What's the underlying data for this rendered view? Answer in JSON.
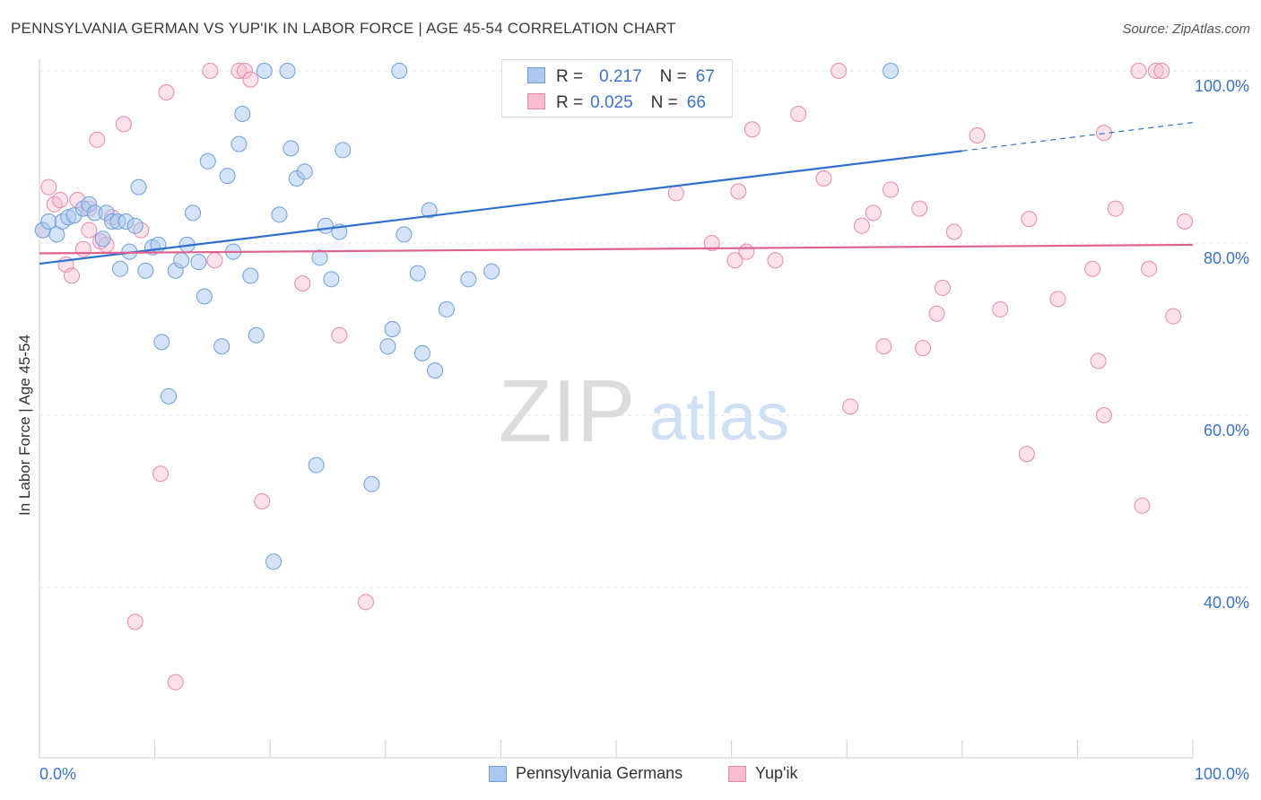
{
  "header": {
    "title": "PENNSYLVANIA GERMAN VS YUP'IK IN LABOR FORCE | AGE 45-54 CORRELATION CHART",
    "source": "Source: ZipAtlas.com"
  },
  "watermark": {
    "zip": "ZIP",
    "atlas": "atlas"
  },
  "legend_top": {
    "rows": [
      {
        "r_label": "R =",
        "r_value": "0.217",
        "n_label": "N =",
        "n_value": "67"
      },
      {
        "r_label": "R =",
        "r_value": "0.025",
        "n_label": "N =",
        "n_value": "66"
      }
    ]
  },
  "legend_bottom": {
    "items": [
      {
        "label": "Pennsylvania Germans"
      },
      {
        "label": "Yup'ik"
      }
    ]
  },
  "colors": {
    "blue_fill": "#aac8ef",
    "blue_stroke": "#6f9fd8",
    "blue_line": "#2f6fcf",
    "pink_fill": "#f6bcd0",
    "pink_stroke": "#e68aab",
    "pink_line": "#e0628f",
    "tick_label": "#3b72c8",
    "grid": "#e0e0e0"
  },
  "chart_data": {
    "type": "scatter",
    "title": "PENNSYLVANIA GERMAN VS YUP'IK IN LABOR FORCE | AGE 45-54 CORRELATION CHART",
    "xlabel": "",
    "ylabel": "In Labor Force | Age 45-54",
    "xlim": [
      0,
      100
    ],
    "ylim": [
      20,
      100.5
    ],
    "x_tick_labels": [
      "0.0%",
      "100.0%"
    ],
    "y_ticks": [
      40,
      60,
      80,
      100
    ],
    "y_tick_labels": [
      "40.0%",
      "60.0%",
      "80.0%",
      "100.0%"
    ],
    "grid": "horizontal dashed",
    "legend_position": "top-center",
    "series": [
      {
        "name": "Pennsylvania Germans",
        "R": 0.217,
        "N": 67,
        "trend": {
          "x0": 0,
          "y0": 77.6,
          "x1": 80,
          "y1": 90.7,
          "dashed_to_x": 100,
          "dashed_to_y": 94.0
        },
        "points": [
          [
            0.3,
            81.5
          ],
          [
            0.8,
            82.5
          ],
          [
            1.5,
            81.0
          ],
          [
            2.0,
            82.5
          ],
          [
            2.5,
            83.0
          ],
          [
            3.0,
            83.2
          ],
          [
            3.8,
            84.0
          ],
          [
            4.3,
            84.5
          ],
          [
            4.8,
            83.5
          ],
          [
            5.5,
            80.5
          ],
          [
            5.8,
            83.5
          ],
          [
            6.3,
            82.5
          ],
          [
            6.8,
            82.5
          ],
          [
            7.0,
            77.0
          ],
          [
            7.5,
            82.5
          ],
          [
            7.8,
            79.0
          ],
          [
            8.3,
            82.0
          ],
          [
            8.6,
            86.5
          ],
          [
            9.2,
            76.8
          ],
          [
            9.8,
            79.5
          ],
          [
            10.3,
            79.8
          ],
          [
            10.6,
            68.5
          ],
          [
            11.2,
            62.2
          ],
          [
            11.8,
            76.8
          ],
          [
            12.3,
            78.0
          ],
          [
            12.8,
            79.8
          ],
          [
            13.3,
            83.5
          ],
          [
            13.8,
            77.8
          ],
          [
            14.3,
            73.8
          ],
          [
            14.6,
            89.5
          ],
          [
            15.8,
            68.0
          ],
          [
            16.3,
            87.8
          ],
          [
            16.8,
            79.0
          ],
          [
            17.3,
            91.5
          ],
          [
            17.6,
            95.0
          ],
          [
            18.3,
            76.2
          ],
          [
            18.8,
            69.3
          ],
          [
            19.5,
            100.0
          ],
          [
            20.3,
            43.0
          ],
          [
            20.8,
            83.3
          ],
          [
            21.5,
            100.0
          ],
          [
            21.8,
            91.0
          ],
          [
            22.3,
            87.5
          ],
          [
            23.0,
            88.3
          ],
          [
            24.0,
            54.2
          ],
          [
            24.3,
            78.3
          ],
          [
            24.8,
            82.0
          ],
          [
            25.3,
            75.8
          ],
          [
            26.0,
            81.3
          ],
          [
            26.3,
            90.8
          ],
          [
            28.8,
            52.0
          ],
          [
            30.2,
            68.0
          ],
          [
            30.6,
            70.0
          ],
          [
            31.2,
            100.0
          ],
          [
            31.6,
            81.0
          ],
          [
            32.8,
            76.5
          ],
          [
            33.2,
            67.2
          ],
          [
            33.8,
            83.8
          ],
          [
            34.3,
            65.2
          ],
          [
            35.3,
            72.3
          ],
          [
            37.2,
            75.8
          ],
          [
            39.2,
            76.7
          ],
          [
            46.3,
            100.0
          ],
          [
            47.2,
            100.0
          ],
          [
            58.3,
            100.0
          ],
          [
            59.0,
            100.0
          ],
          [
            73.8,
            100.0
          ]
        ]
      },
      {
        "name": "Yup'ik",
        "R": 0.025,
        "N": 66,
        "trend": {
          "x0": 0,
          "y0": 78.8,
          "x1": 100,
          "y1": 79.8
        },
        "points": [
          [
            0.3,
            81.5
          ],
          [
            0.8,
            86.5
          ],
          [
            1.3,
            84.5
          ],
          [
            1.8,
            85.0
          ],
          [
            2.3,
            77.5
          ],
          [
            2.8,
            76.2
          ],
          [
            3.3,
            85.0
          ],
          [
            3.8,
            79.3
          ],
          [
            4.3,
            84.0
          ],
          [
            4.3,
            81.5
          ],
          [
            5.0,
            92.0
          ],
          [
            5.3,
            80.2
          ],
          [
            5.8,
            79.8
          ],
          [
            6.3,
            83.0
          ],
          [
            7.3,
            93.8
          ],
          [
            8.3,
            36.0
          ],
          [
            8.8,
            81.5
          ],
          [
            10.5,
            53.2
          ],
          [
            11.0,
            97.5
          ],
          [
            11.8,
            29.0
          ],
          [
            14.8,
            100.0
          ],
          [
            15.2,
            78.0
          ],
          [
            17.3,
            100.0
          ],
          [
            17.8,
            100.0
          ],
          [
            18.3,
            99.0
          ],
          [
            19.3,
            50.0
          ],
          [
            22.8,
            75.3
          ],
          [
            26.0,
            69.3
          ],
          [
            28.3,
            38.3
          ],
          [
            55.2,
            85.8
          ],
          [
            58.3,
            80.0
          ],
          [
            60.3,
            78.0
          ],
          [
            60.6,
            86.0
          ],
          [
            61.3,
            79.0
          ],
          [
            61.8,
            93.2
          ],
          [
            63.8,
            78.0
          ],
          [
            65.8,
            95.0
          ],
          [
            68.0,
            87.5
          ],
          [
            69.3,
            100.0
          ],
          [
            70.3,
            61.0
          ],
          [
            71.3,
            82.0
          ],
          [
            72.3,
            83.5
          ],
          [
            73.8,
            86.2
          ],
          [
            73.2,
            68.0
          ],
          [
            76.3,
            84.0
          ],
          [
            76.6,
            67.8
          ],
          [
            77.8,
            71.8
          ],
          [
            78.3,
            74.8
          ],
          [
            79.3,
            81.3
          ],
          [
            81.3,
            92.5
          ],
          [
            83.3,
            72.3
          ],
          [
            85.6,
            55.5
          ],
          [
            85.8,
            82.8
          ],
          [
            88.3,
            73.5
          ],
          [
            91.3,
            77.0
          ],
          [
            91.8,
            66.3
          ],
          [
            92.3,
            92.8
          ],
          [
            92.3,
            60.0
          ],
          [
            93.3,
            84.0
          ],
          [
            95.3,
            100.0
          ],
          [
            95.6,
            49.5
          ],
          [
            96.2,
            77.0
          ],
          [
            96.8,
            100.0
          ],
          [
            97.3,
            100.0
          ],
          [
            98.3,
            71.5
          ],
          [
            99.3,
            82.5
          ]
        ]
      }
    ]
  }
}
